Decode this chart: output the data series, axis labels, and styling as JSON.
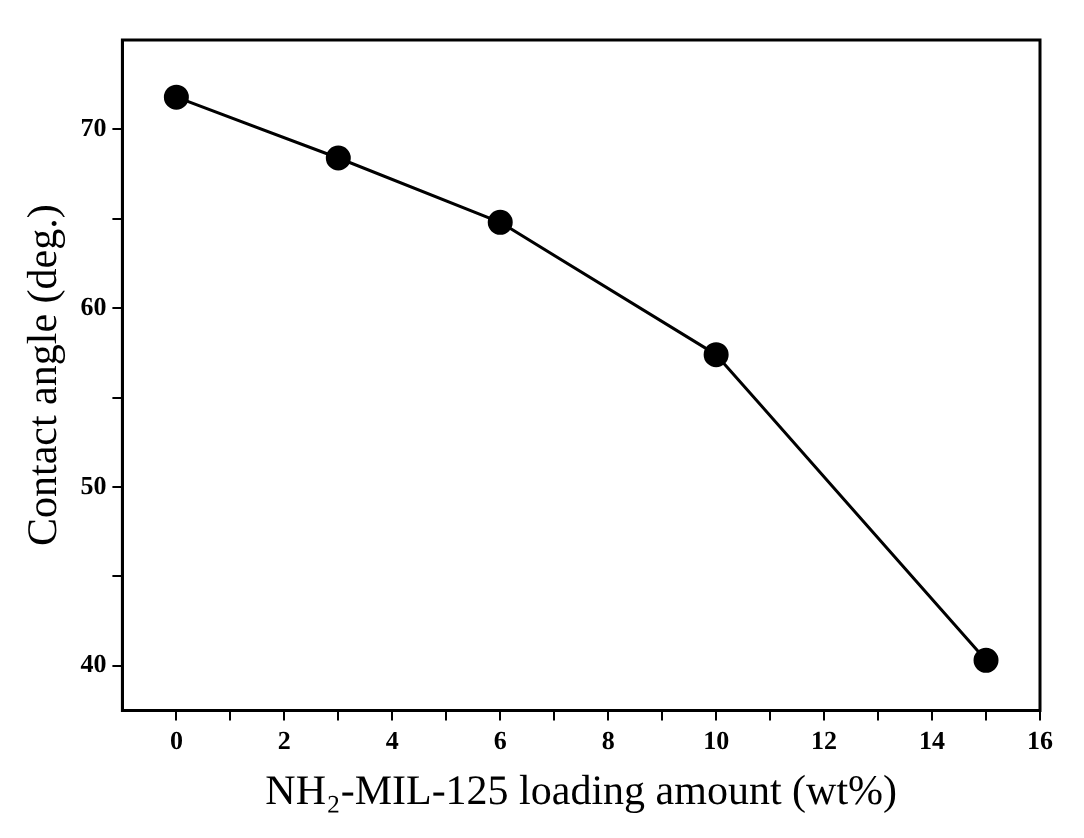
{
  "chart_data": {
    "type": "line",
    "xlabel": "NH₂-MIL-125 loading amount (wt%)",
    "ylabel": "Contact angle (deg.)",
    "x": [
      0,
      3,
      6,
      10,
      15
    ],
    "series": [
      {
        "color": "#000000",
        "values": [
          71.8,
          68.4,
          64.8,
          57.4,
          40.3
        ]
      }
    ],
    "xlim": [
      -1,
      16
    ],
    "ylim": [
      37.5,
      75
    ],
    "xticks": [
      0,
      {
        "value": 1,
        "label": null
      },
      2,
      {
        "value": 3,
        "label": null
      },
      4,
      {
        "value": 5,
        "label": null
      },
      6,
      {
        "value": 7,
        "label": null
      },
      8,
      {
        "value": 9,
        "label": null
      },
      10,
      {
        "value": 11,
        "label": null
      },
      12,
      {
        "value": 13,
        "label": null
      },
      14,
      {
        "value": 15,
        "label": null
      },
      16
    ],
    "yticks": [
      40,
      {
        "value": 45,
        "label": null
      },
      50,
      {
        "value": 55,
        "label": null
      },
      60,
      {
        "value": 65,
        "label": null
      },
      70
    ],
    "grid": false,
    "legend": false,
    "marker": "circle",
    "line_style": "solid"
  }
}
